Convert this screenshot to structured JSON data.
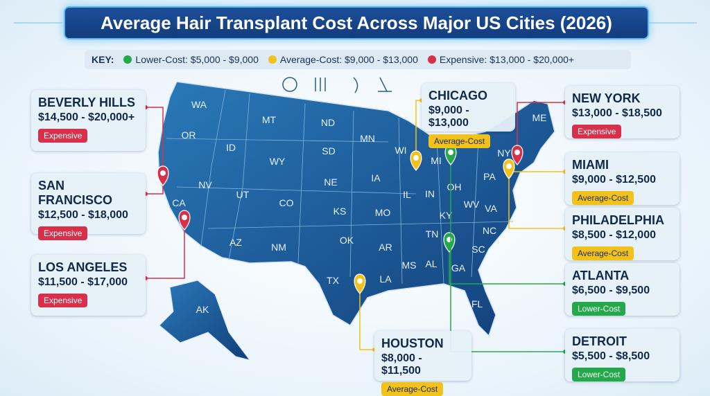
{
  "title": "Average Hair Transplant Cost Across Major US Cities (2026)",
  "key": {
    "label": "KEY:",
    "items": [
      {
        "text": "Lower-Cost: $5,000 - $9,000",
        "color": "#23a94a"
      },
      {
        "text": "Average-Cost: $9,000 - $13,000",
        "color": "#f2c21b"
      },
      {
        "text": "Expensive: $13,000 - $20,000+",
        "color": "#d8304a"
      }
    ]
  },
  "cities": [
    {
      "name": "BEVERLY HILLS",
      "range": "$14,500 - $20,000+",
      "tier": "Expensive",
      "color": "#d8304a"
    },
    {
      "name": "SAN FRANCISCO",
      "range": "$12,500 - $18,000",
      "tier": "Expensive",
      "color": "#d8304a"
    },
    {
      "name": "LOS ANGELES",
      "range": "$11,500 - $17,000",
      "tier": "Expensive",
      "color": "#d8304a"
    },
    {
      "name": "CHICAGO",
      "range": "$9,000 - $13,000",
      "tier": "Average-Cost",
      "color": "#f2c21b"
    },
    {
      "name": "NEW YORK",
      "range": "$13,000 - $18,500",
      "tier": "Expensive",
      "color": "#d8304a"
    },
    {
      "name": "MIAMI",
      "range": "$9,000 - $12,500",
      "tier": "Average-Cost",
      "color": "#f2c21b"
    },
    {
      "name": "PHILADELPHIA",
      "range": "$8,500 - $12,000",
      "tier": "Average-Cost",
      "color": "#f2c21b"
    },
    {
      "name": "ATLANTA",
      "range": "$6,500 - $9,500",
      "tier": "Lower-Cost",
      "color": "#23a94a"
    },
    {
      "name": "DETROIT",
      "range": "$5,500 - $8,500",
      "tier": "Lower-Cost",
      "color": "#23a94a"
    },
    {
      "name": "HOUSTON",
      "range": "$8,000 - $11,500",
      "tier": "Average-Cost",
      "color": "#f2c21b"
    }
  ],
  "states": [
    "WA",
    "OR",
    "CA",
    "NV",
    "ID",
    "MT",
    "WY",
    "UT",
    "AZ",
    "CO",
    "NM",
    "ND",
    "SD",
    "NE",
    "KS",
    "OK",
    "TX",
    "MN",
    "IA",
    "MO",
    "AR",
    "LA",
    "WI",
    "IL",
    "MI",
    "IN",
    "OH",
    "KY",
    "TN",
    "MS",
    "AL",
    "GA",
    "FL",
    "SC",
    "NC",
    "VA",
    "WV",
    "PA",
    "NY",
    "ME",
    "AK"
  ]
}
